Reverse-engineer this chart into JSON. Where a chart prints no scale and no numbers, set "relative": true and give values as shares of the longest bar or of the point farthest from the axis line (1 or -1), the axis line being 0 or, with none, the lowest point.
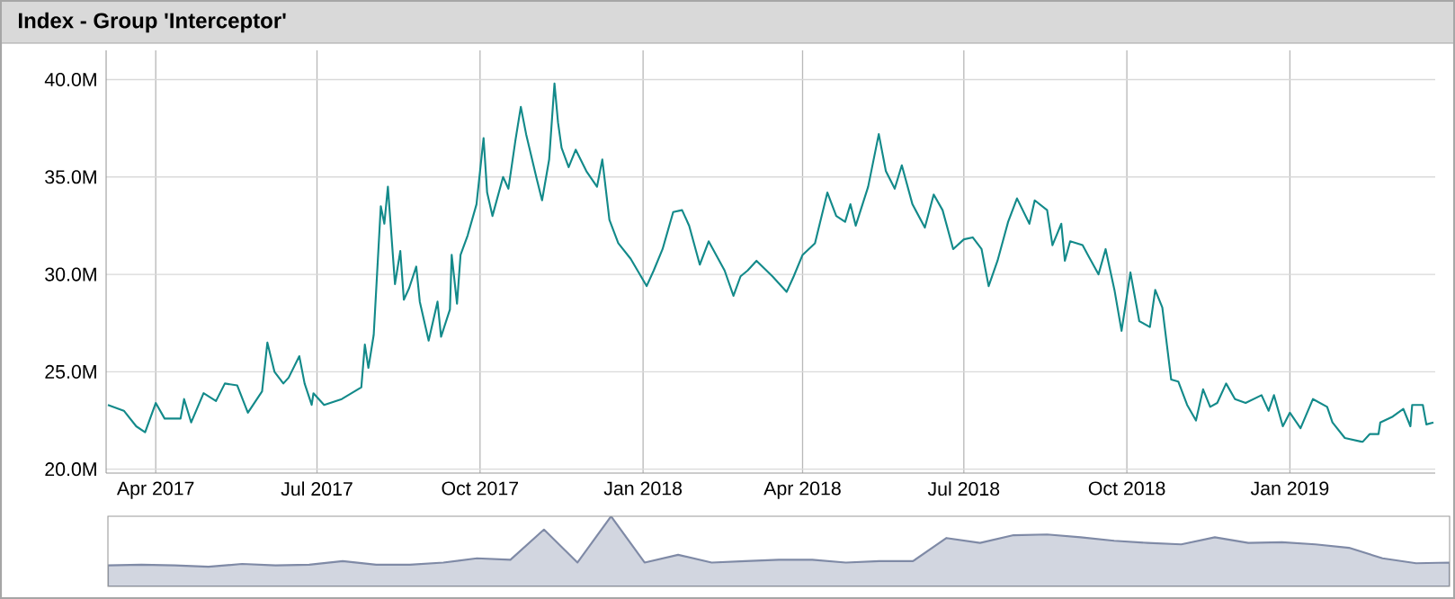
{
  "chart_data": [
    {
      "type": "line",
      "title": "Index - Group 'Interceptor'",
      "x": [
        "2017-03-05",
        "2017-03-14",
        "2017-03-21",
        "2017-03-26",
        "2017-04-01",
        "2017-04-06",
        "2017-04-15",
        "2017-04-17",
        "2017-04-21",
        "2017-04-28",
        "2017-05-05",
        "2017-05-10",
        "2017-05-17",
        "2017-05-23",
        "2017-05-31",
        "2017-06-03",
        "2017-06-07",
        "2017-06-12",
        "2017-06-15",
        "2017-06-21",
        "2017-06-24",
        "2017-06-28",
        "2017-06-29",
        "2017-07-05",
        "2017-07-15",
        "2017-07-26",
        "2017-07-28",
        "2017-07-30",
        "2017-08-02",
        "2017-08-06",
        "2017-08-08",
        "2017-08-10",
        "2017-08-14",
        "2017-08-17",
        "2017-08-19",
        "2017-08-22",
        "2017-08-26",
        "2017-08-28",
        "2017-09-02",
        "2017-09-07",
        "2017-09-09",
        "2017-09-14",
        "2017-09-15",
        "2017-09-18",
        "2017-09-20",
        "2017-09-24",
        "2017-09-29",
        "2017-10-03",
        "2017-10-05",
        "2017-10-08",
        "2017-10-14",
        "2017-10-17",
        "2017-10-21",
        "2017-10-24",
        "2017-10-27",
        "2017-11-02",
        "2017-11-05",
        "2017-11-09",
        "2017-11-12",
        "2017-11-14",
        "2017-11-16",
        "2017-11-20",
        "2017-11-24",
        "2017-11-30",
        "2017-12-06",
        "2017-12-09",
        "2017-12-13",
        "2017-12-18",
        "2017-12-25",
        "2018-01-03",
        "2018-01-07",
        "2018-01-12",
        "2018-01-18",
        "2018-01-23",
        "2018-01-27",
        "2018-02-02",
        "2018-02-07",
        "2018-02-16",
        "2018-02-21",
        "2018-02-25",
        "2018-03-01",
        "2018-03-06",
        "2018-03-15",
        "2018-03-23",
        "2018-03-27",
        "2018-04-01",
        "2018-04-08",
        "2018-04-15",
        "2018-04-20",
        "2018-04-25",
        "2018-04-28",
        "2018-05-01",
        "2018-05-08",
        "2018-05-14",
        "2018-05-18",
        "2018-05-23",
        "2018-05-27",
        "2018-06-02",
        "2018-06-09",
        "2018-06-14",
        "2018-06-19",
        "2018-06-25",
        "2018-07-01",
        "2018-07-06",
        "2018-07-11",
        "2018-07-15",
        "2018-07-20",
        "2018-07-26",
        "2018-07-31",
        "2018-08-07",
        "2018-08-10",
        "2018-08-17",
        "2018-08-20",
        "2018-08-25",
        "2018-08-27",
        "2018-08-30",
        "2018-09-06",
        "2018-09-09",
        "2018-09-15",
        "2018-09-19",
        "2018-09-24",
        "2018-09-28",
        "2018-10-03",
        "2018-10-08",
        "2018-10-14",
        "2018-10-17",
        "2018-10-21",
        "2018-10-26",
        "2018-10-30",
        "2018-11-04",
        "2018-11-09",
        "2018-11-13",
        "2018-11-17",
        "2018-11-21",
        "2018-11-26",
        "2018-12-01",
        "2018-12-07",
        "2018-12-16",
        "2018-12-20",
        "2018-12-23",
        "2018-12-28",
        "2019-01-01",
        "2019-01-07",
        "2019-01-14",
        "2019-01-22",
        "2019-01-25",
        "2019-02-01",
        "2019-02-11",
        "2019-02-15",
        "2019-02-20",
        "2019-02-21",
        "2019-02-28",
        "2019-03-06",
        "2019-03-10",
        "2019-03-11",
        "2019-03-17",
        "2019-03-19",
        "2019-03-23"
      ],
      "series": [
        {
          "color": "#138a8a",
          "values": [
            23.3,
            23.0,
            22.2,
            21.9,
            23.4,
            22.6,
            22.6,
            23.6,
            22.4,
            23.9,
            23.5,
            24.4,
            24.3,
            22.9,
            24.0,
            26.5,
            25.0,
            24.4,
            24.7,
            25.8,
            24.4,
            23.3,
            23.9,
            23.3,
            23.6,
            24.2,
            26.4,
            25.2,
            26.9,
            33.5,
            32.6,
            34.5,
            29.5,
            31.2,
            28.7,
            29.3,
            30.4,
            28.6,
            26.6,
            28.6,
            26.8,
            28.2,
            31.0,
            28.5,
            31.0,
            32.0,
            33.6,
            37.0,
            34.2,
            33.0,
            35.0,
            34.4,
            36.9,
            38.6,
            37.2,
            34.9,
            33.8,
            35.9,
            39.8,
            37.8,
            36.5,
            35.5,
            36.4,
            35.3,
            34.5,
            35.9,
            32.8,
            31.6,
            30.8,
            29.4,
            30.2,
            31.3,
            33.2,
            33.3,
            32.5,
            30.5,
            31.7,
            30.2,
            28.9,
            29.9,
            30.2,
            30.7,
            29.9,
            29.1,
            29.9,
            31.0,
            31.6,
            34.2,
            33.0,
            32.7,
            33.6,
            32.5,
            34.5,
            37.2,
            35.3,
            34.4,
            35.6,
            33.6,
            32.4,
            34.1,
            33.3,
            31.3,
            31.8,
            31.9,
            31.3,
            29.4,
            30.7,
            32.7,
            33.9,
            32.6,
            33.8,
            33.3,
            31.5,
            32.6,
            30.7,
            31.7,
            31.5,
            31.0,
            30.0,
            31.3,
            29.2,
            27.1,
            30.1,
            27.6,
            27.3,
            29.2,
            28.3,
            24.6,
            24.5,
            23.3,
            22.5,
            24.1,
            23.2,
            23.4,
            24.4,
            23.6,
            23.4,
            23.8,
            23.0,
            23.8,
            22.2,
            22.9,
            22.1,
            23.6,
            23.2,
            22.4,
            21.6,
            21.4,
            21.8,
            21.8,
            22.4,
            22.7,
            23.1,
            22.2,
            23.3,
            23.3,
            22.3,
            22.4
          ]
        }
      ],
      "xlim": [
        "2017-03-04",
        "2019-03-24"
      ],
      "xticks": [
        {
          "value": "2017-04-01",
          "label": "Apr 2017"
        },
        {
          "value": "2017-07-01",
          "label": "Jul 2017"
        },
        {
          "value": "2017-10-01",
          "label": "Oct 2017"
        },
        {
          "value": "2018-01-01",
          "label": "Jan 2018"
        },
        {
          "value": "2018-04-01",
          "label": "Apr 2018"
        },
        {
          "value": "2018-07-01",
          "label": "Jul 2018"
        },
        {
          "value": "2018-10-01",
          "label": "Oct 2018"
        },
        {
          "value": "2019-01-01",
          "label": "Jan 2019"
        }
      ],
      "ylim": [
        19.8,
        41.5
      ],
      "yticks": [
        {
          "value": 20,
          "label": "20.0M"
        },
        {
          "value": 25,
          "label": "25.0M"
        },
        {
          "value": 30,
          "label": "30.0M"
        },
        {
          "value": 35,
          "label": "35.0M"
        },
        {
          "value": 40,
          "label": "40.0M"
        }
      ],
      "grid": true
    },
    {
      "type": "area",
      "relative": true,
      "categories": [
        null,
        null,
        null,
        null,
        null,
        null,
        null,
        null,
        null,
        null,
        null,
        null,
        null,
        null,
        null,
        null,
        null,
        null,
        null,
        null,
        null,
        null,
        null,
        null,
        null,
        null,
        null,
        null,
        null,
        null,
        null,
        null,
        null,
        null,
        null,
        null,
        null,
        null,
        null,
        null,
        null
      ],
      "series": [
        {
          "color": "#7f8aa6",
          "values": [
            0.3,
            0.31,
            0.3,
            0.28,
            0.32,
            0.3,
            0.31,
            0.36,
            0.31,
            0.31,
            0.34,
            0.4,
            0.38,
            0.81,
            0.34,
            1.0,
            0.34,
            0.45,
            0.34,
            0.36,
            0.38,
            0.38,
            0.34,
            0.36,
            0.36,
            0.69,
            0.62,
            0.73,
            0.74,
            0.7,
            0.65,
            0.62,
            0.6,
            0.7,
            0.62,
            0.63,
            0.6,
            0.55,
            0.4,
            0.33,
            0.34
          ]
        }
      ]
    }
  ]
}
